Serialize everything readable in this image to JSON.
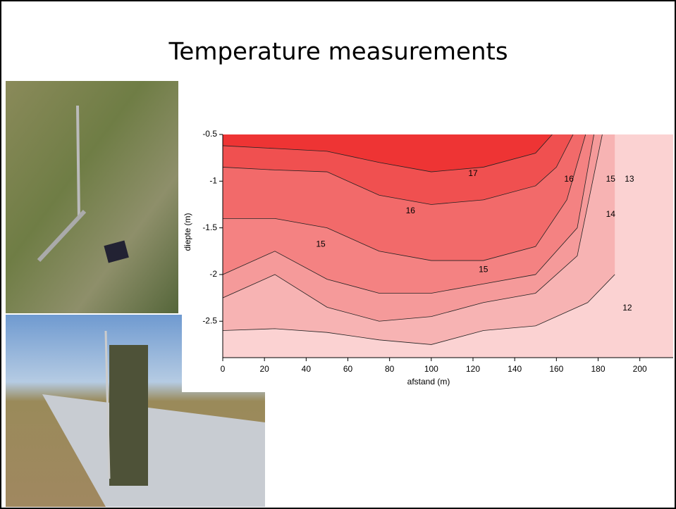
{
  "title": "Temperature measurements",
  "chart_data": {
    "type": "contour",
    "xlabel": "afstand (m)",
    "ylabel": "diepte (m)",
    "xlim": [
      0,
      216
    ],
    "ylim": [
      -2.89,
      -0.5
    ],
    "xticks": [
      0,
      20,
      40,
      60,
      80,
      100,
      120,
      140,
      160,
      180,
      200
    ],
    "yticks": [
      -0.5,
      -1,
      -1.5,
      -2,
      -2.5
    ],
    "background": "#fbd2d2",
    "levels": [
      {
        "name": "12",
        "color": "#f7b3b3",
        "x": [
          0,
          25,
          50,
          75,
          100,
          125,
          150,
          175,
          188
        ],
        "y": [
          -2.6,
          -2.58,
          -2.62,
          -2.7,
          -2.75,
          -2.6,
          -2.55,
          -2.3,
          -2.0
        ]
      },
      {
        "name": "13",
        "color": "#f59a9a",
        "x": [
          0,
          25,
          50,
          75,
          100,
          125,
          150,
          170,
          182
        ],
        "y": [
          -2.25,
          -2.0,
          -2.35,
          -2.5,
          -2.45,
          -2.3,
          -2.2,
          -1.8,
          -0.5
        ]
      },
      {
        "name": "14",
        "color": "#f48282",
        "x": [
          0,
          25,
          50,
          75,
          100,
          125,
          150,
          170,
          178
        ],
        "y": [
          -2.0,
          -1.75,
          -2.05,
          -2.2,
          -2.2,
          -2.1,
          -2.0,
          -1.5,
          -0.5
        ]
      },
      {
        "name": "15",
        "color": "#f26a6a",
        "x": [
          0,
          25,
          50,
          75,
          100,
          125,
          150,
          165,
          174
        ],
        "y": [
          -1.4,
          -1.4,
          -1.5,
          -1.75,
          -1.85,
          -1.85,
          -1.7,
          -1.2,
          -0.5
        ]
      },
      {
        "name": "16",
        "color": "#f05050",
        "x": [
          0,
          25,
          50,
          75,
          100,
          125,
          150,
          160,
          168
        ],
        "y": [
          -0.85,
          -0.88,
          -0.9,
          -1.15,
          -1.25,
          -1.2,
          -1.05,
          -0.85,
          -0.5
        ]
      },
      {
        "name": "17",
        "color": "#ee3434",
        "x": [
          0,
          25,
          50,
          75,
          100,
          125,
          150,
          158
        ],
        "y": [
          -0.62,
          -0.65,
          -0.68,
          -0.8,
          -0.9,
          -0.85,
          -0.7,
          -0.5
        ]
      }
    ],
    "contour_labels": [
      {
        "text": "17",
        "x": 120,
        "y": -0.92
      },
      {
        "text": "16",
        "x": 166,
        "y": -0.98
      },
      {
        "text": "15",
        "x": 186,
        "y": -0.98
      },
      {
        "text": "13",
        "x": 195,
        "y": -0.98
      },
      {
        "text": "16",
        "x": 90,
        "y": -1.32
      },
      {
        "text": "14",
        "x": 186,
        "y": -1.36
      },
      {
        "text": "15",
        "x": 47,
        "y": -1.68
      },
      {
        "text": "15",
        "x": 125,
        "y": -1.95
      },
      {
        "text": "12",
        "x": 194,
        "y": -2.36
      }
    ]
  }
}
